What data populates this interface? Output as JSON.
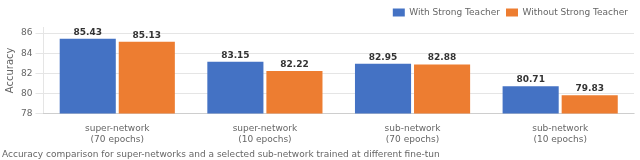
{
  "chart_data": {
    "type": "bar",
    "categories": [
      "super-network\n(70 epochs)",
      "super-network\n(10 epochs)",
      "sub-network\n(70 epochs)",
      "sub-network\n(10 epochs)"
    ],
    "series": [
      {
        "name": "With Strong Teacher",
        "color": "#4472c4",
        "values": [
          85.43,
          83.15,
          82.95,
          80.71
        ]
      },
      {
        "name": "Without Strong Teacher",
        "color": "#ed7d31",
        "values": [
          85.13,
          82.22,
          82.88,
          79.83
        ]
      }
    ],
    "ylabel": "Accuracy",
    "ylim": [
      78,
      86.6
    ],
    "yticks": [
      78,
      80,
      82,
      84,
      86
    ],
    "grid": true,
    "legend": "upper right",
    "data_labels": true,
    "caption": "Accuracy comparison for super-networks and a selected sub-network trained at different fine-tun"
  }
}
